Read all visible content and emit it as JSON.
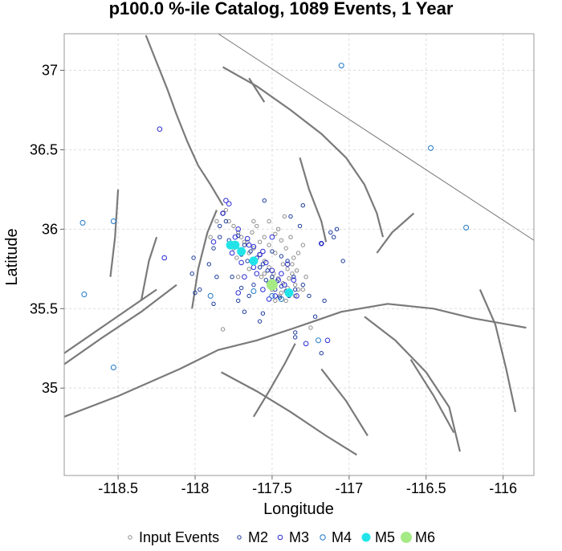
{
  "chart_data": {
    "type": "scatter",
    "title": "p100.0 %-ile Catalog, 1089 Events, 1 Year",
    "xlabel": "Longitude",
    "ylabel": "Latitude",
    "xlim": [
      -118.85,
      -115.8
    ],
    "ylim": [
      34.45,
      37.23
    ],
    "xticks": [
      -118.5,
      -118,
      -117.5,
      -117,
      -116.5,
      -116
    ],
    "yticks": [
      35,
      35.5,
      36,
      36.5,
      37
    ],
    "grid": true,
    "legend_position": "bottom",
    "colors": {
      "input": "#8c8c8c",
      "M2": "#1a3a9c",
      "M3": "#2a2ad6",
      "M4": "#1f78c8",
      "M5": "#22e4e8",
      "M6": "#a6ea86",
      "fault": "#7a7a7a"
    },
    "series": [
      {
        "name": "Input Events",
        "marker": "open-circle",
        "color": "#8c8c8c",
        "points": [
          [
            -117.72,
            35.98
          ],
          [
            -117.7,
            35.95
          ],
          [
            -117.66,
            35.92
          ],
          [
            -117.62,
            35.88
          ],
          [
            -117.58,
            35.84
          ],
          [
            -117.55,
            35.8
          ],
          [
            -117.52,
            35.76
          ],
          [
            -117.49,
            35.72
          ],
          [
            -117.46,
            35.69
          ],
          [
            -117.43,
            35.66
          ],
          [
            -117.4,
            35.63
          ],
          [
            -117.38,
            35.6
          ],
          [
            -117.8,
            36.12
          ],
          [
            -117.78,
            36.05
          ],
          [
            -117.75,
            36.02
          ],
          [
            -117.62,
            36.05
          ],
          [
            -117.55,
            35.95
          ],
          [
            -117.48,
            35.85
          ],
          [
            -117.43,
            35.78
          ],
          [
            -117.4,
            35.75
          ],
          [
            -117.37,
            35.72
          ],
          [
            -117.35,
            35.65
          ],
          [
            -117.33,
            35.62
          ],
          [
            -117.5,
            35.62
          ],
          [
            -117.45,
            35.58
          ],
          [
            -117.48,
            35.97
          ],
          [
            -117.44,
            35.93
          ],
          [
            -117.41,
            35.88
          ],
          [
            -117.38,
            35.95
          ],
          [
            -117.36,
            35.82
          ],
          [
            -117.3,
            35.9
          ],
          [
            -117.28,
            35.7
          ],
          [
            -117.42,
            36.08
          ],
          [
            -117.6,
            36.02
          ],
          [
            -117.52,
            36.05
          ],
          [
            -117.86,
            36.05
          ],
          [
            -117.82,
            36.1
          ],
          [
            -117.9,
            35.95
          ],
          [
            -117.48,
            35.55
          ],
          [
            -117.72,
            35.7
          ],
          [
            -117.65,
            35.75
          ],
          [
            -117.57,
            35.7
          ],
          [
            -117.35,
            35.58
          ],
          [
            -117.3,
            35.62
          ],
          [
            -117.65,
            35.85
          ],
          [
            -117.68,
            35.92
          ],
          [
            -117.61,
            35.8
          ],
          [
            -117.55,
            35.72
          ],
          [
            -117.44,
            35.6
          ],
          [
            -117.41,
            35.55
          ],
          [
            -117.5,
            35.68
          ],
          [
            -117.37,
            35.78
          ],
          [
            -117.33,
            35.85
          ],
          [
            -117.46,
            36.0
          ],
          [
            -117.52,
            35.9
          ],
          [
            -117.63,
            35.98
          ],
          [
            -117.75,
            35.88
          ],
          [
            -117.73,
            35.82
          ],
          [
            -117.25,
            35.38
          ],
          [
            -117.82,
            35.37
          ],
          [
            -117.58,
            35.92
          ],
          [
            -117.39,
            35.69
          ],
          [
            -117.34,
            35.74
          ]
        ]
      },
      {
        "name": "M2",
        "marker": "open-circle",
        "color": "#1a3a9c",
        "points": [
          [
            -117.72,
            35.96
          ],
          [
            -117.68,
            35.9
          ],
          [
            -117.64,
            35.86
          ],
          [
            -117.6,
            35.82
          ],
          [
            -117.56,
            35.78
          ],
          [
            -117.53,
            35.74
          ],
          [
            -117.5,
            35.7
          ],
          [
            -117.47,
            35.67
          ],
          [
            -117.44,
            35.64
          ],
          [
            -117.41,
            35.61
          ],
          [
            -117.39,
            35.58
          ],
          [
            -117.78,
            35.93
          ],
          [
            -117.7,
            35.84
          ],
          [
            -117.66,
            35.8
          ],
          [
            -117.58,
            35.76
          ],
          [
            -117.54,
            35.68
          ],
          [
            -117.48,
            35.62
          ],
          [
            -117.45,
            35.57
          ],
          [
            -117.62,
            35.65
          ],
          [
            -117.36,
            35.7
          ],
          [
            -117.35,
            35.62
          ],
          [
            -117.4,
            35.8
          ],
          [
            -117.44,
            35.83
          ],
          [
            -117.5,
            35.86
          ],
          [
            -117.32,
            36.02
          ],
          [
            -117.38,
            36.08
          ],
          [
            -117.18,
            35.91
          ],
          [
            -117.16,
            35.55
          ],
          [
            -117.1,
            35.95
          ],
          [
            -117.08,
            36.0
          ],
          [
            -117.84,
            35.95
          ],
          [
            -117.88,
            35.88
          ],
          [
            -117.91,
            35.78
          ],
          [
            -118.01,
            35.82
          ],
          [
            -118.02,
            35.72
          ],
          [
            -118.0,
            35.6
          ],
          [
            -117.68,
            35.48
          ],
          [
            -117.58,
            35.42
          ],
          [
            -117.56,
            35.47
          ],
          [
            -117.35,
            35.32
          ],
          [
            -117.35,
            35.35
          ],
          [
            -117.18,
            35.22
          ],
          [
            -117.72,
            35.55
          ],
          [
            -117.65,
            35.58
          ],
          [
            -117.7,
            35.63
          ],
          [
            -117.76,
            35.7
          ],
          [
            -117.3,
            35.65
          ],
          [
            -117.26,
            35.58
          ],
          [
            -117.55,
            36.18
          ],
          [
            -117.8,
            36.05
          ],
          [
            -117.84,
            36.02
          ],
          [
            -117.97,
            35.62
          ],
          [
            -117.88,
            35.53
          ],
          [
            -117.22,
            35.45
          ],
          [
            -117.04,
            35.8
          ],
          [
            -117.3,
            36.15
          ],
          [
            -117.12,
            35.98
          ],
          [
            -117.86,
            35.7
          ]
        ]
      },
      {
        "name": "M3",
        "marker": "open-circle",
        "color": "#2a2ad6",
        "points": [
          [
            -118.23,
            36.63
          ],
          [
            -117.78,
            36.16
          ],
          [
            -117.72,
            36.0
          ],
          [
            -117.66,
            35.94
          ],
          [
            -117.62,
            35.89
          ],
          [
            -117.58,
            35.84
          ],
          [
            -117.54,
            35.79
          ],
          [
            -117.5,
            35.74
          ],
          [
            -117.46,
            35.68
          ],
          [
            -117.42,
            35.65
          ],
          [
            -117.38,
            35.6
          ],
          [
            -117.18,
            35.91
          ],
          [
            -117.14,
            35.3
          ],
          [
            -117.28,
            35.28
          ],
          [
            -118.2,
            35.82
          ],
          [
            -117.7,
            35.79
          ],
          [
            -117.6,
            35.72
          ],
          [
            -117.52,
            35.66
          ],
          [
            -117.48,
            35.58
          ],
          [
            -117.65,
            35.9
          ],
          [
            -117.76,
            35.85
          ],
          [
            -117.8,
            36.18
          ],
          [
            -117.56,
            35.62
          ],
          [
            -117.4,
            35.78
          ],
          [
            -117.36,
            35.68
          ],
          [
            -117.44,
            35.72
          ],
          [
            -117.34,
            35.58
          ],
          [
            -117.62,
            35.76
          ],
          [
            -117.56,
            35.86
          ],
          [
            -117.68,
            35.7
          ],
          [
            -117.88,
            35.92
          ],
          [
            -117.82,
            36.1
          ],
          [
            -117.5,
            35.95
          ],
          [
            -117.74,
            35.95
          ],
          [
            -117.52,
            35.56
          ],
          [
            -117.72,
            35.6
          ]
        ]
      },
      {
        "name": "M4",
        "marker": "open-circle",
        "color": "#1f78c8",
        "points": [
          [
            -117.05,
            37.03
          ],
          [
            -116.47,
            36.51
          ],
          [
            -116.24,
            36.01
          ],
          [
            -118.73,
            36.04
          ],
          [
            -118.53,
            36.05
          ],
          [
            -118.72,
            35.59
          ],
          [
            -118.53,
            35.13
          ],
          [
            -117.62,
            35.61
          ],
          [
            -117.9,
            35.58
          ],
          [
            -117.2,
            35.3
          ],
          [
            -117.5,
            35.58
          ],
          [
            -117.44,
            35.56
          ]
        ]
      },
      {
        "name": "M5",
        "marker": "filled-circle",
        "color": "#22e4e8",
        "points": [
          [
            -117.77,
            35.9
          ],
          [
            -117.74,
            35.9
          ],
          [
            -117.7,
            35.86
          ],
          [
            -117.62,
            35.8
          ],
          [
            -117.5,
            35.65
          ],
          [
            -117.39,
            35.6
          ]
        ]
      },
      {
        "name": "M6",
        "marker": "filled-circle",
        "color": "#a6ea86",
        "points": [
          [
            -117.5,
            35.65
          ]
        ]
      }
    ],
    "faults": [
      [
        [
          -118.85,
          34.82
        ],
        [
          -118.5,
          34.95
        ],
        [
          -118.1,
          35.12
        ],
        [
          -117.85,
          35.24
        ],
        [
          -117.6,
          35.3
        ],
        [
          -117.35,
          35.38
        ],
        [
          -117.05,
          35.48
        ],
        [
          -116.75,
          35.53
        ],
        [
          -116.45,
          35.5
        ],
        [
          -116.2,
          35.44
        ],
        [
          -115.85,
          35.38
        ]
      ],
      [
        [
          -118.85,
          35.15
        ],
        [
          -118.6,
          35.32
        ],
        [
          -118.35,
          35.48
        ],
        [
          -118.12,
          35.65
        ]
      ],
      [
        [
          -118.85,
          35.22
        ],
        [
          -118.55,
          35.42
        ],
        [
          -118.25,
          35.62
        ]
      ],
      [
        [
          -118.32,
          37.22
        ],
        [
          -118.25,
          37.05
        ],
        [
          -118.18,
          36.88
        ],
        [
          -118.12,
          36.72
        ],
        [
          -118.05,
          36.55
        ],
        [
          -117.98,
          36.4
        ],
        [
          -117.9,
          36.28
        ],
        [
          -117.82,
          36.15
        ]
      ],
      [
        [
          -118.02,
          35.5
        ],
        [
          -117.98,
          35.75
        ],
        [
          -117.92,
          35.98
        ],
        [
          -117.86,
          36.12
        ]
      ],
      [
        [
          -117.82,
          37.02
        ],
        [
          -117.6,
          36.9
        ],
        [
          -117.38,
          36.75
        ],
        [
          -117.18,
          36.6
        ],
        [
          -117.02,
          36.45
        ],
        [
          -116.9,
          36.28
        ],
        [
          -116.82,
          36.1
        ],
        [
          -116.78,
          35.95
        ]
      ],
      [
        [
          -117.32,
          36.45
        ],
        [
          -117.26,
          36.25
        ],
        [
          -117.18,
          36.05
        ],
        [
          -117.15,
          35.92
        ]
      ],
      [
        [
          -117.62,
          34.82
        ],
        [
          -117.52,
          34.98
        ],
        [
          -117.42,
          35.15
        ],
        [
          -117.35,
          35.28
        ]
      ],
      [
        [
          -117.83,
          35.1
        ],
        [
          -117.6,
          34.98
        ],
        [
          -117.38,
          34.85
        ],
        [
          -117.15,
          34.7
        ],
        [
          -116.95,
          34.58
        ]
      ],
      [
        [
          -117.18,
          35.12
        ],
        [
          -117.02,
          34.92
        ],
        [
          -116.88,
          34.7
        ]
      ],
      [
        [
          -116.9,
          35.45
        ],
        [
          -116.7,
          35.3
        ],
        [
          -116.5,
          35.1
        ],
        [
          -116.35,
          34.88
        ],
        [
          -116.28,
          34.6
        ]
      ],
      [
        [
          -116.6,
          35.18
        ],
        [
          -116.45,
          34.95
        ],
        [
          -116.32,
          34.72
        ]
      ],
      [
        [
          -116.15,
          35.62
        ],
        [
          -116.05,
          35.4
        ],
        [
          -115.98,
          35.12
        ],
        [
          -115.92,
          34.85
        ]
      ],
      [
        [
          -116.82,
          35.85
        ],
        [
          -116.72,
          35.98
        ],
        [
          -116.58,
          36.1
        ]
      ],
      [
        [
          -118.5,
          36.25
        ],
        [
          -118.52,
          35.95
        ],
        [
          -118.55,
          35.7
        ]
      ],
      [
        [
          -118.35,
          35.55
        ],
        [
          -118.3,
          35.8
        ],
        [
          -118.25,
          35.95
        ]
      ],
      [
        [
          -117.65,
          36.95
        ],
        [
          -117.55,
          36.8
        ]
      ]
    ]
  },
  "legend": {
    "items": [
      {
        "label": "Input Events",
        "marker": "input"
      },
      {
        "label": "M2",
        "marker": "M2"
      },
      {
        "label": "M3",
        "marker": "M3"
      },
      {
        "label": "M4",
        "marker": "M4"
      },
      {
        "label": "M5",
        "marker": "M5"
      },
      {
        "label": "M6",
        "marker": "M6"
      }
    ]
  }
}
